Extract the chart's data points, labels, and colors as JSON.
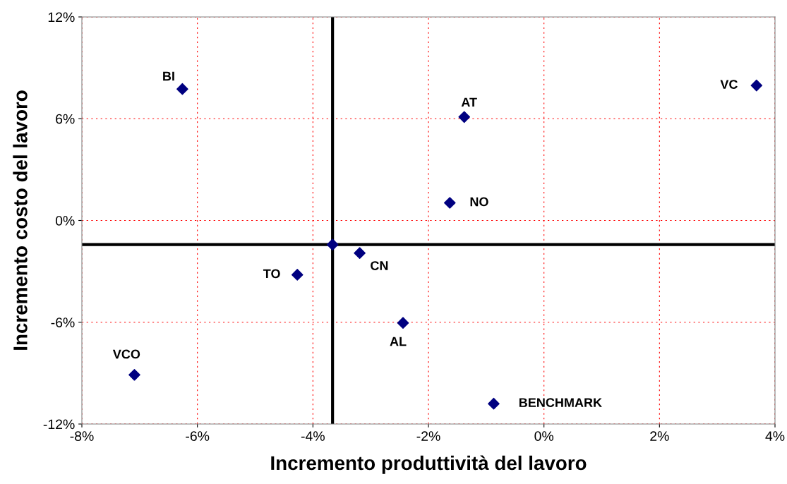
{
  "chart_data": {
    "type": "scatter",
    "xlabel": "Incremento produttività del lavoro",
    "ylabel": "Incremento costo del lavoro",
    "x": [
      -6.26,
      3.68,
      -1.38,
      -1.63,
      -3.66,
      -3.19,
      -4.27,
      -2.44,
      -7.09,
      -0.87
    ],
    "series": [
      {
        "color": "#000080",
        "values": [
          7.75,
          7.96,
          6.1,
          1.04,
          -1.42,
          -1.92,
          -3.2,
          -6.04,
          -9.1,
          -10.8
        ]
      }
    ],
    "marker": "diamond",
    "grid": true,
    "legend": false,
    "xlim": [
      -8,
      4
    ],
    "xticks": [
      {
        "value": -8,
        "label": "-8%"
      },
      {
        "value": -6,
        "label": "-6%"
      },
      {
        "value": -4,
        "label": "-4%"
      },
      {
        "value": -2,
        "label": "-2%"
      },
      {
        "value": 0,
        "label": "0%"
      },
      {
        "value": 2,
        "label": "2%"
      },
      {
        "value": 4,
        "label": "4%"
      }
    ],
    "ylim": [
      -12,
      12
    ],
    "yticks": [
      {
        "value": -12,
        "label": "-12%"
      },
      {
        "value": -6,
        "label": "-6%"
      },
      {
        "value": 0,
        "label": "0%"
      },
      {
        "value": 6,
        "label": "6%"
      },
      {
        "value": 12,
        "label": "12%"
      }
    ],
    "ref_lines": [
      {
        "axis": "x",
        "value": -3.66,
        "color": "#000000"
      },
      {
        "axis": "y",
        "value": -1.42,
        "color": "#000000"
      }
    ],
    "annotations": [
      {
        "text": "BI",
        "x": -6.26,
        "y": 7.75
      },
      {
        "text": "VC",
        "x": 3.68,
        "y": 7.96
      },
      {
        "text": "AT",
        "x": -1.38,
        "y": 6.1
      },
      {
        "text": "NO",
        "x": -1.63,
        "y": 1.04
      },
      {
        "text": "CN",
        "x": -3.19,
        "y": -1.92
      },
      {
        "text": "TO",
        "x": -4.27,
        "y": -3.2
      },
      {
        "text": "AL",
        "x": -2.44,
        "y": -6.04
      },
      {
        "text": "VCO",
        "x": -7.09,
        "y": -9.1
      },
      {
        "text": "BENCHMARK",
        "x": -0.87,
        "y": -10.8
      }
    ]
  }
}
